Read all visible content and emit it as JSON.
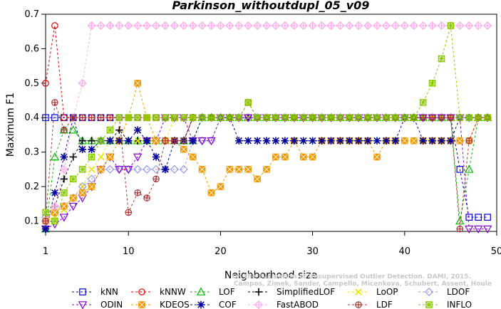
{
  "chart_data": {
    "type": "line",
    "title": "Parkinson_withoutdupl_05_v09",
    "xlabel": "Neighborhood size",
    "ylabel": "Maximum F1",
    "xlim": [
      1,
      50
    ],
    "ylim": [
      0.07,
      0.7
    ],
    "xticks": [
      1,
      10,
      20,
      30,
      40,
      50
    ],
    "yticks": [
      0.1,
      0.2,
      0.3,
      0.4,
      0.5,
      0.6,
      0.7
    ],
    "legend_position": "bottom",
    "credits": [
      "Campos, Zimek, Sander, Campello, Micenkova, Schubert, Assent, Houle",
      "On the Evaluation of Unsupervised Outlier Detection. DAMI, 2015."
    ],
    "series": [
      {
        "name": "kNN",
        "color": "#0000cc",
        "marker": "square",
        "values": [
          0.4,
          0.4,
          0.4,
          0.4,
          0.4,
          0.4,
          0.4,
          0.4,
          0.4,
          0.4,
          0.4,
          0.4,
          0.4,
          0.4,
          0.4,
          0.4,
          0.4,
          0.4,
          0.4,
          0.4,
          0.4,
          0.4,
          0.4,
          0.4,
          0.4,
          0.4,
          0.4,
          0.4,
          0.4,
          0.4,
          0.4,
          0.4,
          0.4,
          0.4,
          0.4,
          0.4,
          0.4,
          0.4,
          0.4,
          0.4,
          0.4,
          0.4,
          0.4,
          0.4,
          0.4,
          0.25,
          0.111,
          0.111,
          0.111
        ]
      },
      {
        "name": "kNNW",
        "color": "#dd0000",
        "marker": "circle",
        "values": [
          0.5,
          0.667,
          0.4,
          0.4,
          0.4,
          0.4,
          0.4,
          0.4,
          0.4,
          0.4,
          0.4,
          0.4,
          0.4,
          0.4,
          0.4,
          0.4,
          0.4,
          0.4,
          0.4,
          0.4,
          0.4,
          0.4,
          0.4,
          0.4,
          0.4,
          0.4,
          0.4,
          0.4,
          0.4,
          0.4,
          0.4,
          0.4,
          0.4,
          0.4,
          0.4,
          0.4,
          0.4,
          0.4,
          0.4,
          0.4,
          0.4,
          0.4,
          0.4,
          0.4,
          0.4,
          0.4,
          0.4,
          0.4,
          0.4
        ]
      },
      {
        "name": "LOF",
        "color": "#00bb00",
        "marker": "triangle",
        "values": [
          0.077,
          0.286,
          0.364,
          0.364,
          0.333,
          0.333,
          0.333,
          0.333,
          0.333,
          0.333,
          0.333,
          0.333,
          0.333,
          0.333,
          0.333,
          0.333,
          0.333,
          0.4,
          0.4,
          0.4,
          0.4,
          0.4,
          0.4,
          0.4,
          0.4,
          0.4,
          0.4,
          0.4,
          0.4,
          0.4,
          0.4,
          0.4,
          0.4,
          0.4,
          0.4,
          0.4,
          0.4,
          0.4,
          0.4,
          0.4,
          0.4,
          0.4,
          0.4,
          0.4,
          0.4,
          0.1,
          0.25,
          0.4,
          0.4
        ]
      },
      {
        "name": "SimplifiedLOF",
        "color": "#000000",
        "marker": "plus",
        "values": [
          0.1,
          0.143,
          0.222,
          0.286,
          0.333,
          0.333,
          0.333,
          0.333,
          0.364,
          0.333,
          0.333,
          0.333,
          0.333,
          0.333,
          0.333,
          0.333,
          0.4,
          0.4,
          0.4,
          0.4,
          0.4,
          0.4,
          0.4,
          0.4,
          0.4,
          0.4,
          0.4,
          0.4,
          0.4,
          0.4,
          0.4,
          0.4,
          0.4,
          0.4,
          0.4,
          0.4,
          0.4,
          0.4,
          0.4,
          0.4,
          0.4,
          0.4,
          0.4,
          0.4,
          0.4,
          0.4,
          0.4,
          0.4,
          0.4
        ]
      },
      {
        "name": "LoOP",
        "color": "#e6e600",
        "marker": "x",
        "values": [
          0.1,
          0.111,
          0.133,
          0.167,
          0.2,
          0.25,
          0.286,
          0.333,
          0.333,
          0.333,
          0.333,
          0.333,
          0.333,
          0.333,
          0.4,
          0.4,
          0.4,
          0.4,
          0.4,
          0.4,
          0.4,
          0.4,
          0.4,
          0.4,
          0.4,
          0.4,
          0.4,
          0.4,
          0.4,
          0.4,
          0.4,
          0.4,
          0.4,
          0.4,
          0.4,
          0.4,
          0.4,
          0.4,
          0.4,
          0.4,
          0.4,
          0.4,
          0.4,
          0.4,
          0.4,
          0.4,
          0.4,
          0.4,
          0.4
        ]
      },
      {
        "name": "LDOF",
        "color": "#9999ee",
        "marker": "diamond",
        "values": [
          0.111,
          0.125,
          0.143,
          0.167,
          0.2,
          0.222,
          0.25,
          0.25,
          0.25,
          0.25,
          0.25,
          0.25,
          0.25,
          0.25,
          0.25,
          0.25,
          0.333,
          0.333,
          0.333,
          0.4,
          0.4,
          0.4,
          0.4,
          0.4,
          0.4,
          0.4,
          0.4,
          0.4,
          0.4,
          0.4,
          0.4,
          0.4,
          0.4,
          0.4,
          0.4,
          0.4,
          0.4,
          0.4,
          0.4,
          0.4,
          0.4,
          0.4,
          0.4,
          0.4,
          0.4,
          0.4,
          0.4,
          0.4,
          0.4
        ]
      },
      {
        "name": "ODIN",
        "color": "#8800cc",
        "marker": "triangle-down",
        "values": [
          0.077,
          0.091,
          0.111,
          0.143,
          0.167,
          0.2,
          0.25,
          0.286,
          0.25,
          0.25,
          0.286,
          0.333,
          0.333,
          0.4,
          0.4,
          0.4,
          0.333,
          0.333,
          0.333,
          0.4,
          0.4,
          0.4,
          0.4,
          0.4,
          0.4,
          0.4,
          0.4,
          0.4,
          0.4,
          0.4,
          0.4,
          0.4,
          0.4,
          0.4,
          0.4,
          0.4,
          0.4,
          0.4,
          0.4,
          0.4,
          0.4,
          0.4,
          0.4,
          0.4,
          0.4,
          0.4,
          0.077,
          0.077,
          0.077
        ]
      },
      {
        "name": "KDEOS",
        "color": "#ee9900",
        "marker": "square-x",
        "values": [
          0.1,
          0.125,
          0.143,
          0.167,
          0.182,
          0.2,
          0.25,
          0.286,
          0.333,
          0.4,
          0.5,
          0.4,
          0.333,
          0.333,
          0.333,
          0.308,
          0.286,
          0.25,
          0.182,
          0.2,
          0.25,
          0.25,
          0.25,
          0.222,
          0.25,
          0.286,
          0.286,
          0.333,
          0.286,
          0.286,
          0.333,
          0.333,
          0.333,
          0.333,
          0.333,
          0.333,
          0.286,
          0.333,
          0.333,
          0.333,
          0.333,
          0.333,
          0.333,
          0.333,
          0.333,
          0.333,
          0.333,
          0.4,
          0.4
        ]
      },
      {
        "name": "COF",
        "color": "#000099",
        "marker": "asterisk",
        "values": [
          0.077,
          0.182,
          0.286,
          0.4,
          0.308,
          0.308,
          0.333,
          0.333,
          0.333,
          0.333,
          0.364,
          0.333,
          0.286,
          0.25,
          0.333,
          0.333,
          0.333,
          0.4,
          0.4,
          0.4,
          0.4,
          0.333,
          0.333,
          0.333,
          0.333,
          0.333,
          0.333,
          0.333,
          0.333,
          0.333,
          0.333,
          0.333,
          0.333,
          0.333,
          0.333,
          0.333,
          0.333,
          0.333,
          0.333,
          0.4,
          0.4,
          0.333,
          0.333,
          0.333,
          0.333,
          0.4,
          0.4,
          0.4,
          0.4
        ]
      },
      {
        "name": "FastABOD",
        "color": "#ffaaee",
        "marker": "diamond-plus",
        "values": [
          0.1,
          0.143,
          0.25,
          0.4,
          0.5,
          0.667,
          0.667,
          0.667,
          0.667,
          0.667,
          0.667,
          0.667,
          0.667,
          0.667,
          0.667,
          0.667,
          0.667,
          0.667,
          0.667,
          0.667,
          0.667,
          0.667,
          0.667,
          0.667,
          0.667,
          0.667,
          0.667,
          0.667,
          0.667,
          0.667,
          0.667,
          0.667,
          0.667,
          0.667,
          0.667,
          0.667,
          0.667,
          0.667,
          0.667,
          0.667,
          0.667,
          0.667,
          0.667,
          0.667,
          0.667,
          0.667,
          0.667,
          0.667,
          0.667
        ]
      },
      {
        "name": "LDF",
        "color": "#aa3333",
        "marker": "circle-plus",
        "values": [
          0.1,
          0.444,
          0.364,
          0.4,
          0.4,
          0.4,
          0.4,
          0.4,
          0.4,
          0.125,
          0.182,
          0.167,
          0.222,
          0.333,
          0.333,
          0.333,
          0.4,
          0.4,
          0.4,
          0.4,
          0.4,
          0.4,
          0.444,
          0.4,
          0.4,
          0.4,
          0.4,
          0.4,
          0.4,
          0.4,
          0.4,
          0.4,
          0.4,
          0.4,
          0.4,
          0.4,
          0.4,
          0.4,
          0.4,
          0.4,
          0.4,
          0.4,
          0.4,
          0.4,
          0.4,
          0.077,
          0.333,
          0.4,
          0.4
        ]
      },
      {
        "name": "INFLO",
        "color": "#88cc00",
        "marker": "star-box",
        "values": [
          0.125,
          0.1,
          0.182,
          0.222,
          0.25,
          0.286,
          0.333,
          0.364,
          0.4,
          0.4,
          0.4,
          0.4,
          0.4,
          0.4,
          0.4,
          0.4,
          0.4,
          0.4,
          0.4,
          0.4,
          0.4,
          0.4,
          0.444,
          0.4,
          0.4,
          0.4,
          0.4,
          0.4,
          0.4,
          0.4,
          0.4,
          0.4,
          0.4,
          0.4,
          0.4,
          0.4,
          0.4,
          0.4,
          0.4,
          0.4,
          0.4,
          0.444,
          0.5,
          0.571,
          0.667,
          0.4,
          0.4,
          0.4,
          0.4
        ]
      }
    ]
  }
}
